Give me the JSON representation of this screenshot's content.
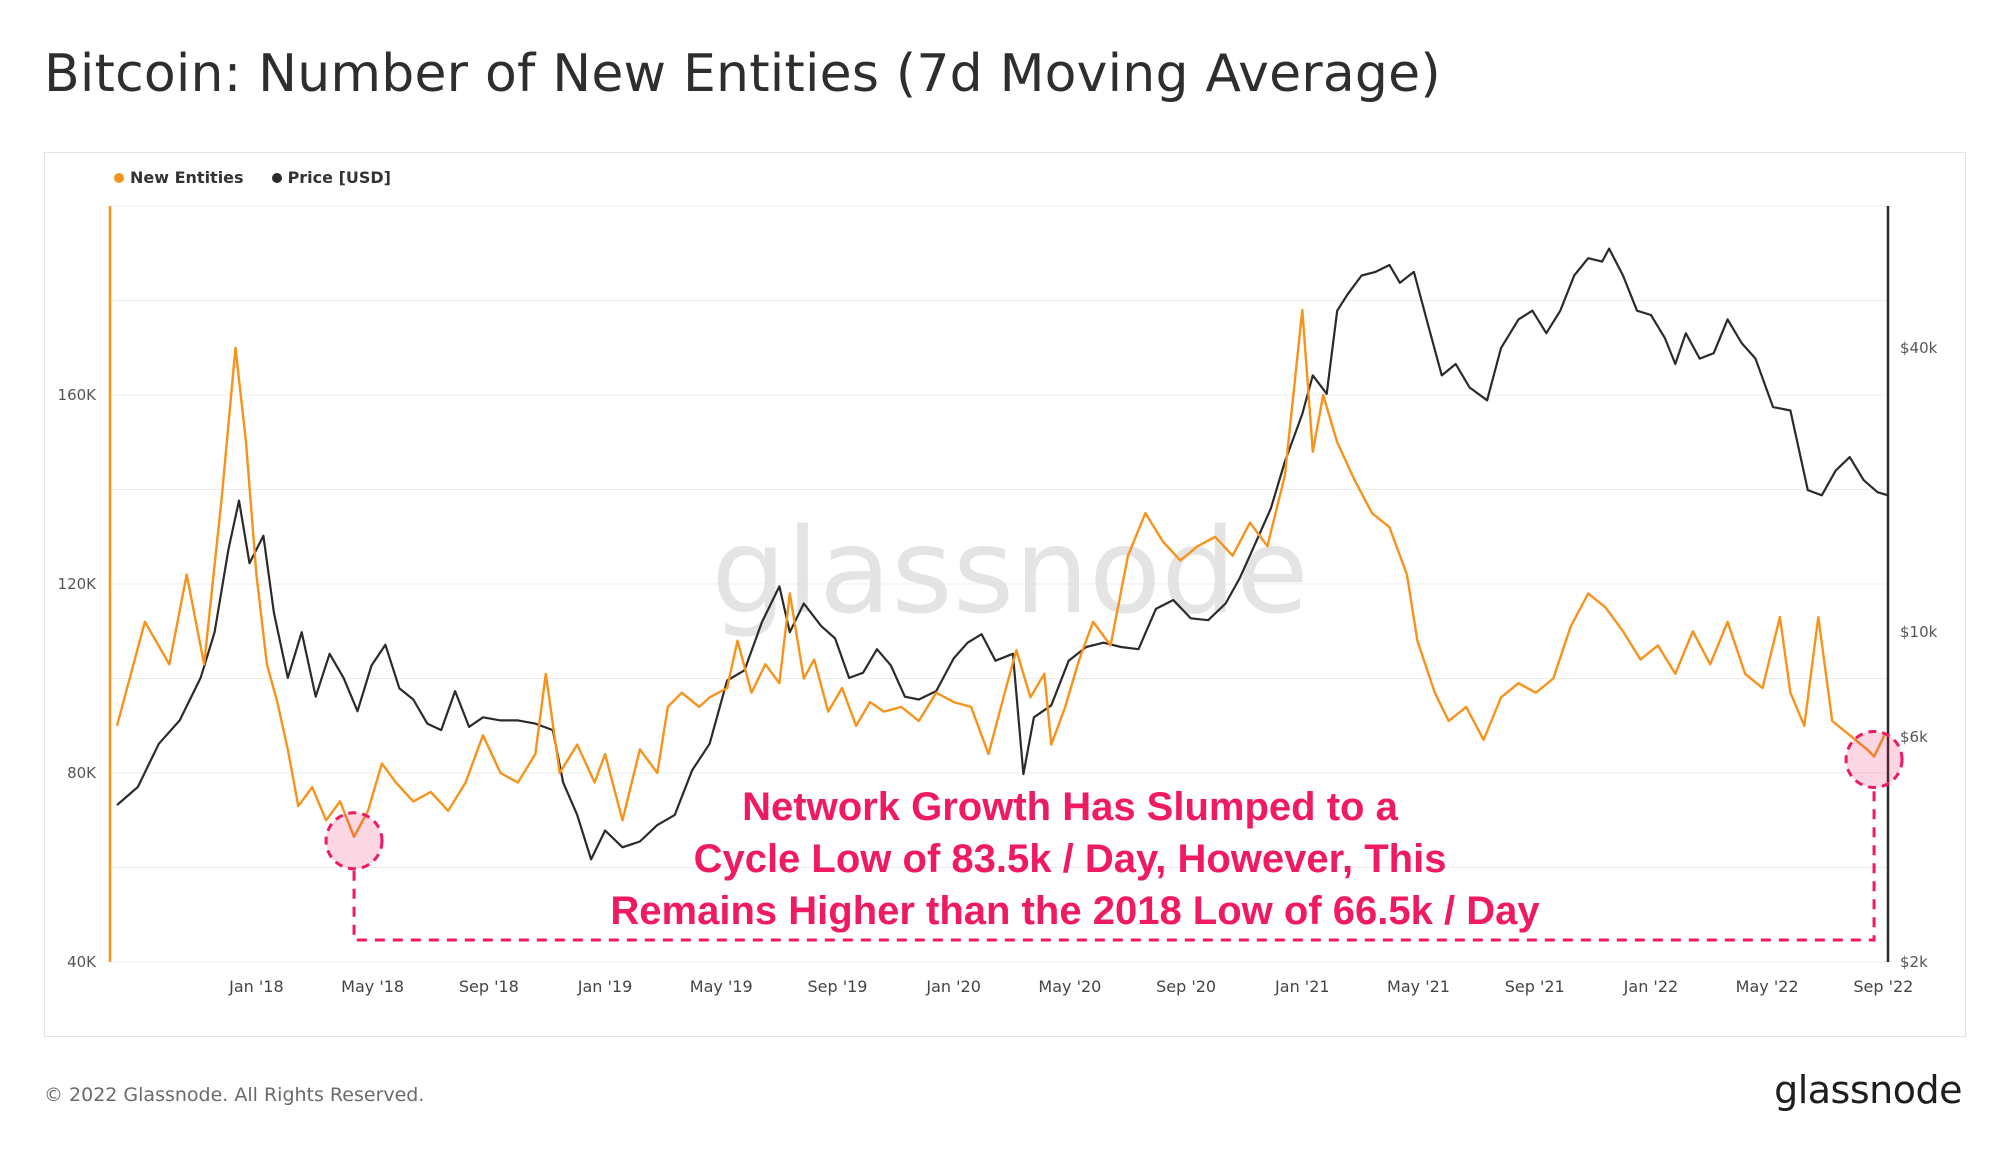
{
  "title": "Bitcoin: Number of New Entities (7d Moving Average)",
  "legend": {
    "new_entities": "New Entities",
    "price": "Price [USD]"
  },
  "colors": {
    "new_entities": "#f7931a",
    "price": "#2b2b2b",
    "annotation": "#ef1a5f",
    "grid": "#ececec"
  },
  "watermark": "glassnode",
  "footer": "© 2022 Glassnode. All Rights Reserved.",
  "brand": "glassnode",
  "chart_data": {
    "type": "line",
    "x_ticks": [
      "Jan '18",
      "May '18",
      "Sep '18",
      "Jan '19",
      "May '19",
      "Sep '19",
      "Jan '20",
      "May '20",
      "Sep '20",
      "Jan '21",
      "May '21",
      "Sep '21",
      "Jan '22",
      "May '22",
      "Sep '22"
    ],
    "x_range": [
      2017.58,
      2022.68
    ],
    "y_left": {
      "label": "New Entities",
      "ticks": [
        "40K",
        "80K",
        "120K",
        "160K"
      ],
      "tick_values": [
        40000,
        80000,
        120000,
        160000
      ],
      "range": [
        40000,
        200000
      ]
    },
    "y_right": {
      "label": "Price [USD]",
      "scale": "log",
      "ticks": [
        "$2k",
        "$6k",
        "$10k",
        "$40k"
      ],
      "tick_values": [
        2000,
        6000,
        10000,
        40000
      ],
      "range": [
        2000,
        80000
      ]
    },
    "series": [
      {
        "name": "New Entities",
        "axis": "left",
        "points": [
          [
            2017.6,
            90000
          ],
          [
            2017.68,
            112000
          ],
          [
            2017.75,
            103000
          ],
          [
            2017.8,
            122000
          ],
          [
            2017.85,
            103000
          ],
          [
            2017.9,
            138000
          ],
          [
            2017.94,
            170000
          ],
          [
            2017.97,
            150000
          ],
          [
            2018.0,
            122000
          ],
          [
            2018.03,
            103000
          ],
          [
            2018.06,
            95000
          ],
          [
            2018.09,
            85000
          ],
          [
            2018.12,
            73000
          ],
          [
            2018.16,
            77000
          ],
          [
            2018.2,
            70000
          ],
          [
            2018.24,
            74000
          ],
          [
            2018.28,
            66500
          ],
          [
            2018.32,
            72000
          ],
          [
            2018.36,
            82000
          ],
          [
            2018.4,
            78000
          ],
          [
            2018.45,
            74000
          ],
          [
            2018.5,
            76000
          ],
          [
            2018.55,
            72000
          ],
          [
            2018.6,
            78000
          ],
          [
            2018.65,
            88000
          ],
          [
            2018.7,
            80000
          ],
          [
            2018.75,
            78000
          ],
          [
            2018.8,
            84000
          ],
          [
            2018.83,
            101000
          ],
          [
            2018.87,
            80000
          ],
          [
            2018.92,
            86000
          ],
          [
            2018.97,
            78000
          ],
          [
            2019.0,
            84000
          ],
          [
            2019.05,
            70000
          ],
          [
            2019.1,
            85000
          ],
          [
            2019.15,
            80000
          ],
          [
            2019.18,
            94000
          ],
          [
            2019.22,
            97000
          ],
          [
            2019.27,
            94000
          ],
          [
            2019.3,
            96000
          ],
          [
            2019.35,
            98000
          ],
          [
            2019.38,
            108000
          ],
          [
            2019.42,
            97000
          ],
          [
            2019.46,
            103000
          ],
          [
            2019.5,
            99000
          ],
          [
            2019.53,
            118000
          ],
          [
            2019.57,
            100000
          ],
          [
            2019.6,
            104000
          ],
          [
            2019.64,
            93000
          ],
          [
            2019.68,
            98000
          ],
          [
            2019.72,
            90000
          ],
          [
            2019.76,
            95000
          ],
          [
            2019.8,
            93000
          ],
          [
            2019.85,
            94000
          ],
          [
            2019.9,
            91000
          ],
          [
            2019.95,
            97000
          ],
          [
            2020.0,
            95000
          ],
          [
            2020.05,
            94000
          ],
          [
            2020.1,
            84000
          ],
          [
            2020.15,
            98000
          ],
          [
            2020.18,
            106000
          ],
          [
            2020.22,
            96000
          ],
          [
            2020.26,
            101000
          ],
          [
            2020.28,
            86000
          ],
          [
            2020.32,
            94000
          ],
          [
            2020.36,
            104000
          ],
          [
            2020.4,
            112000
          ],
          [
            2020.45,
            107000
          ],
          [
            2020.5,
            126000
          ],
          [
            2020.55,
            135000
          ],
          [
            2020.6,
            129000
          ],
          [
            2020.65,
            125000
          ],
          [
            2020.7,
            128000
          ],
          [
            2020.75,
            130000
          ],
          [
            2020.8,
            126000
          ],
          [
            2020.85,
            133000
          ],
          [
            2020.9,
            128000
          ],
          [
            2020.95,
            143000
          ],
          [
            2021.0,
            178000
          ],
          [
            2021.03,
            148000
          ],
          [
            2021.06,
            160000
          ],
          [
            2021.1,
            150000
          ],
          [
            2021.15,
            142000
          ],
          [
            2021.2,
            135000
          ],
          [
            2021.25,
            132000
          ],
          [
            2021.3,
            122000
          ],
          [
            2021.33,
            108000
          ],
          [
            2021.38,
            97000
          ],
          [
            2021.42,
            91000
          ],
          [
            2021.47,
            94000
          ],
          [
            2021.52,
            87000
          ],
          [
            2021.57,
            96000
          ],
          [
            2021.62,
            99000
          ],
          [
            2021.67,
            97000
          ],
          [
            2021.72,
            100000
          ],
          [
            2021.77,
            111000
          ],
          [
            2021.82,
            118000
          ],
          [
            2021.87,
            115000
          ],
          [
            2021.92,
            110000
          ],
          [
            2021.97,
            104000
          ],
          [
            2022.02,
            107000
          ],
          [
            2022.07,
            101000
          ],
          [
            2022.12,
            110000
          ],
          [
            2022.17,
            103000
          ],
          [
            2022.22,
            112000
          ],
          [
            2022.27,
            101000
          ],
          [
            2022.32,
            98000
          ],
          [
            2022.37,
            113000
          ],
          [
            2022.4,
            97000
          ],
          [
            2022.44,
            90000
          ],
          [
            2022.48,
            113000
          ],
          [
            2022.52,
            91000
          ],
          [
            2022.57,
            88000
          ],
          [
            2022.62,
            85000
          ],
          [
            2022.64,
            83500
          ],
          [
            2022.67,
            88000
          ]
        ]
      },
      {
        "name": "Price [USD]",
        "axis": "right",
        "points": [
          [
            2017.6,
            4300
          ],
          [
            2017.66,
            4700
          ],
          [
            2017.72,
            5800
          ],
          [
            2017.78,
            6500
          ],
          [
            2017.84,
            8000
          ],
          [
            2017.88,
            10000
          ],
          [
            2017.92,
            15000
          ],
          [
            2017.95,
            19000
          ],
          [
            2017.98,
            14000
          ],
          [
            2018.02,
            16000
          ],
          [
            2018.05,
            11000
          ],
          [
            2018.09,
            8000
          ],
          [
            2018.13,
            10000
          ],
          [
            2018.17,
            7300
          ],
          [
            2018.21,
            9000
          ],
          [
            2018.25,
            8000
          ],
          [
            2018.29,
            6800
          ],
          [
            2018.33,
            8500
          ],
          [
            2018.37,
            9400
          ],
          [
            2018.41,
            7600
          ],
          [
            2018.45,
            7200
          ],
          [
            2018.49,
            6400
          ],
          [
            2018.53,
            6200
          ],
          [
            2018.57,
            7500
          ],
          [
            2018.61,
            6300
          ],
          [
            2018.65,
            6600
          ],
          [
            2018.7,
            6500
          ],
          [
            2018.75,
            6500
          ],
          [
            2018.8,
            6400
          ],
          [
            2018.85,
            6200
          ],
          [
            2018.88,
            4800
          ],
          [
            2018.92,
            4100
          ],
          [
            2018.96,
            3300
          ],
          [
            2019.0,
            3800
          ],
          [
            2019.05,
            3500
          ],
          [
            2019.1,
            3600
          ],
          [
            2019.15,
            3900
          ],
          [
            2019.2,
            4100
          ],
          [
            2019.25,
            5100
          ],
          [
            2019.3,
            5800
          ],
          [
            2019.35,
            7900
          ],
          [
            2019.4,
            8300
          ],
          [
            2019.45,
            10500
          ],
          [
            2019.5,
            12500
          ],
          [
            2019.53,
            10000
          ],
          [
            2019.57,
            11500
          ],
          [
            2019.62,
            10300
          ],
          [
            2019.66,
            9700
          ],
          [
            2019.7,
            8000
          ],
          [
            2019.74,
            8200
          ],
          [
            2019.78,
            9200
          ],
          [
            2019.82,
            8500
          ],
          [
            2019.86,
            7300
          ],
          [
            2019.9,
            7200
          ],
          [
            2019.95,
            7500
          ],
          [
            2020.0,
            8800
          ],
          [
            2020.04,
            9500
          ],
          [
            2020.08,
            9900
          ],
          [
            2020.12,
            8700
          ],
          [
            2020.17,
            9000
          ],
          [
            2020.2,
            5000
          ],
          [
            2020.23,
            6600
          ],
          [
            2020.28,
            7000
          ],
          [
            2020.33,
            8700
          ],
          [
            2020.38,
            9300
          ],
          [
            2020.43,
            9500
          ],
          [
            2020.48,
            9300
          ],
          [
            2020.53,
            9200
          ],
          [
            2020.58,
            11200
          ],
          [
            2020.63,
            11700
          ],
          [
            2020.68,
            10700
          ],
          [
            2020.73,
            10600
          ],
          [
            2020.78,
            11500
          ],
          [
            2020.82,
            13000
          ],
          [
            2020.87,
            15700
          ],
          [
            2020.91,
            18300
          ],
          [
            2020.95,
            23000
          ],
          [
            2021.0,
            29000
          ],
          [
            2021.03,
            35000
          ],
          [
            2021.07,
            32000
          ],
          [
            2021.1,
            48000
          ],
          [
            2021.13,
            52000
          ],
          [
            2021.17,
            57000
          ],
          [
            2021.21,
            58000
          ],
          [
            2021.25,
            60000
          ],
          [
            2021.28,
            55000
          ],
          [
            2021.32,
            58000
          ],
          [
            2021.36,
            45000
          ],
          [
            2021.4,
            35000
          ],
          [
            2021.44,
            37000
          ],
          [
            2021.48,
            33000
          ],
          [
            2021.53,
            31000
          ],
          [
            2021.57,
            40000
          ],
          [
            2021.62,
            46000
          ],
          [
            2021.66,
            48000
          ],
          [
            2021.7,
            43000
          ],
          [
            2021.74,
            48000
          ],
          [
            2021.78,
            57000
          ],
          [
            2021.82,
            62000
          ],
          [
            2021.86,
            61000
          ],
          [
            2021.88,
            65000
          ],
          [
            2021.92,
            57000
          ],
          [
            2021.96,
            48000
          ],
          [
            2022.0,
            47000
          ],
          [
            2022.04,
            42000
          ],
          [
            2022.07,
            37000
          ],
          [
            2022.1,
            43000
          ],
          [
            2022.14,
            38000
          ],
          [
            2022.18,
            39000
          ],
          [
            2022.22,
            46000
          ],
          [
            2022.26,
            41000
          ],
          [
            2022.3,
            38000
          ],
          [
            2022.35,
            30000
          ],
          [
            2022.4,
            29500
          ],
          [
            2022.45,
            20000
          ],
          [
            2022.49,
            19500
          ],
          [
            2022.53,
            22000
          ],
          [
            2022.57,
            23500
          ],
          [
            2022.61,
            21000
          ],
          [
            2022.65,
            19800
          ],
          [
            2022.68,
            19500
          ]
        ]
      }
    ],
    "highlights": [
      {
        "label": "2018 Low",
        "date": 2018.28,
        "value": 66500
      },
      {
        "label": "Cycle Low",
        "date": 2022.64,
        "value": 83500
      }
    ],
    "annotation": [
      "Network Growth Has Slumped to a",
      "Cycle Low of 83.5k /  Day, However, This",
      "Remains Higher than the 2018 Low of 66.5k / Day"
    ]
  }
}
